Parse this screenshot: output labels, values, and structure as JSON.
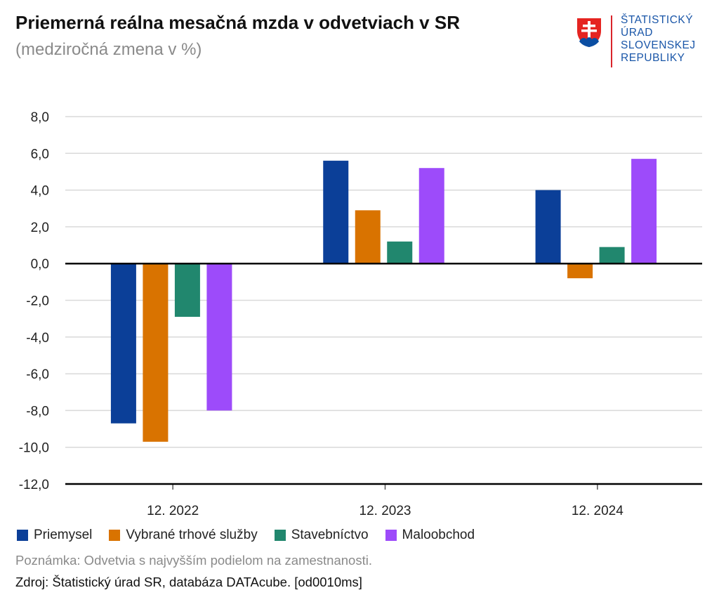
{
  "header": {
    "title": "Priemerná reálna mesačná mzda v odvetviach v SR",
    "subtitle": "(medziročná zmena v %)"
  },
  "logo": {
    "lines": [
      "ŠTATISTICKÝ",
      "ÚRAD",
      "SLOVENSKEJ",
      "REPUBLIKY"
    ],
    "emblem": "slovak-coat-of-arms-icon",
    "colors": {
      "text": "#1a56a8",
      "red": "#e52421",
      "blue": "#0b4ea2"
    }
  },
  "chart_data": {
    "type": "bar",
    "categories": [
      "12. 2022",
      "12. 2023",
      "12. 2024"
    ],
    "series": [
      {
        "name": "Priemysel",
        "color": "#0b3f98",
        "values": [
          -8.7,
          5.6,
          4.0
        ]
      },
      {
        "name": "Vybrané trhové služby",
        "color": "#d97300",
        "values": [
          -9.7,
          2.9,
          -0.8
        ]
      },
      {
        "name": "Stavebníctvo",
        "color": "#21876e",
        "values": [
          -2.9,
          1.2,
          0.9
        ]
      },
      {
        "name": "Maloobchod",
        "color": "#9d4bfa",
        "values": [
          -8.0,
          5.2,
          5.7
        ]
      }
    ],
    "ylim": [
      -12,
      8
    ],
    "yticks": [
      "8,0",
      "6,0",
      "4,0",
      "2,0",
      "0,0",
      "-2,0",
      "-4,0",
      "-6,0",
      "-8,0",
      "-10,0",
      "-12,0"
    ],
    "grid": true,
    "legend_position": "bottom-left"
  },
  "footer": {
    "note": "Poznámka: Odvetvia s najvyšším podielom na zamestnanosti.",
    "source": "Zdroj: Štatistický úrad SR, databáza DATAcube. [od0010ms]"
  }
}
